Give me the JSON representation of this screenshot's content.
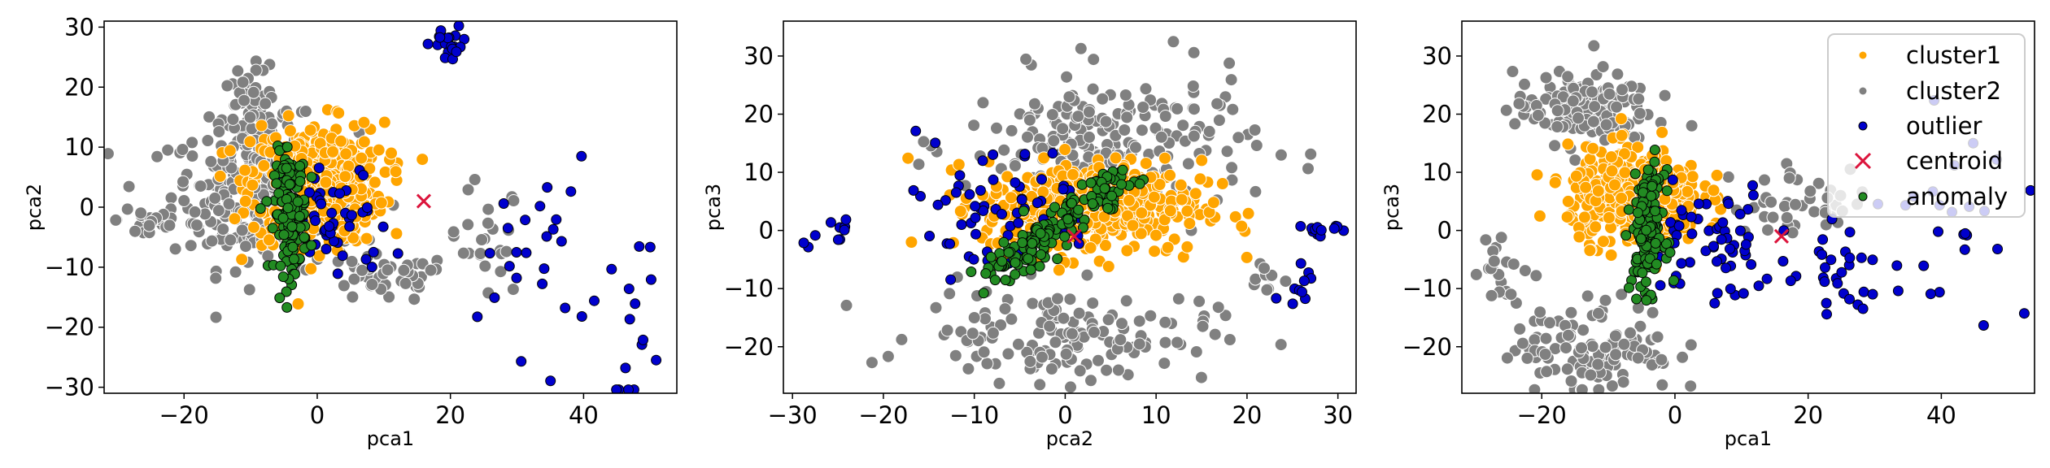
{
  "colors": {
    "cluster1": "#ffa500",
    "cluster2": "#808080",
    "outlier": "#0000cd",
    "centroid": "#dc143c",
    "anomaly": "#228b22"
  },
  "legend": {
    "placement": "top-right of third panel",
    "entries": [
      "cluster1",
      "cluster2",
      "outlier",
      "centroid",
      "anomaly"
    ]
  },
  "chart_data": [
    {
      "type": "scatter",
      "xlabel": "pca1",
      "ylabel": "pca2",
      "xlim": [
        -32,
        54
      ],
      "ylim": [
        -31,
        31
      ],
      "xticks": [
        -20,
        0,
        20,
        40
      ],
      "yticks": [
        -30,
        -20,
        -10,
        0,
        10,
        20,
        30
      ],
      "xtick_labels": [
        "−20",
        "0",
        "20",
        "40"
      ],
      "ytick_labels": [
        "−30",
        "−20",
        "−10",
        "0",
        "10",
        "20",
        "30"
      ],
      "clusters": {
        "cluster2": [
          {
            "cx": -8,
            "cy": 2,
            "sx": 7,
            "sy": 6,
            "n": 280
          },
          {
            "cx": -10,
            "cy": 15,
            "sx": 3,
            "sy": 4,
            "n": 60
          },
          {
            "cx": -25,
            "cy": -2,
            "sx": 2.5,
            "sy": 2,
            "n": 25
          },
          {
            "cx": 10,
            "cy": -12,
            "sx": 5,
            "sy": 2,
            "n": 40
          },
          {
            "cx": 25,
            "cy": -6,
            "sx": 3,
            "sy": 5,
            "n": 25
          }
        ],
        "cluster1": [
          {
            "cx": 0,
            "cy": 4,
            "sx": 5,
            "sy": 5,
            "n": 420
          }
        ],
        "outlier": [
          {
            "cx": 20,
            "cy": 27,
            "sx": 1.5,
            "sy": 1.5,
            "n": 20
          },
          {
            "cx": 3,
            "cy": -3,
            "sx": 4,
            "sy": 5,
            "n": 45
          },
          {
            "cx": 33,
            "cy": -8,
            "sx": 4,
            "sy": 8,
            "n": 25
          },
          {
            "cx": 48,
            "cy": -20,
            "sx": 2,
            "sy": 8,
            "n": 15
          }
        ],
        "anomaly": [
          {
            "cx": -4,
            "cy": -1,
            "sx": 1.2,
            "sy": 5,
            "n": 160
          }
        ]
      },
      "centroid": {
        "x": 16,
        "y": 1
      }
    },
    {
      "type": "scatter",
      "xlabel": "pca2",
      "ylabel": "pca3",
      "xlim": [
        -31,
        32
      ],
      "ylim": [
        -28,
        36
      ],
      "xticks": [
        -30,
        -20,
        -10,
        0,
        10,
        20,
        30
      ],
      "yticks": [
        -20,
        -10,
        0,
        10,
        20,
        30
      ],
      "xtick_labels": [
        "−30",
        "−20",
        "−10",
        "0",
        "10",
        "20",
        "30"
      ],
      "ytick_labels": [
        "−20",
        "−10",
        "0",
        "10",
        "20",
        "30"
      ],
      "clusters": {
        "cluster2": [
          {
            "cx": 5,
            "cy": 15,
            "sx": 8,
            "sy": 6,
            "n": 200
          },
          {
            "cx": 0,
            "cy": -18,
            "sx": 8,
            "sy": 4,
            "n": 140
          },
          {
            "cx": 22,
            "cy": -8,
            "sx": 1.5,
            "sy": 1.5,
            "n": 10
          }
        ],
        "cluster1": [
          {
            "cx": 3,
            "cy": 4,
            "sx": 6,
            "sy": 4,
            "n": 420
          }
        ],
        "outlier": [
          {
            "cx": -8,
            "cy": 4,
            "sx": 6,
            "sy": 6,
            "n": 60
          },
          {
            "cx": -26,
            "cy": 0,
            "sx": 1.5,
            "sy": 1.2,
            "n": 10
          },
          {
            "cx": 28,
            "cy": 0,
            "sx": 1,
            "sy": 1,
            "n": 12
          },
          {
            "cx": 26,
            "cy": -9,
            "sx": 1,
            "sy": 2,
            "n": 10
          }
        ],
        "anomaly_line": {
          "x0": -8,
          "y0": -8,
          "x1": 6,
          "y1": 9,
          "spread": 1.2,
          "n": 160
        }
      },
      "centroid": {
        "x": 1,
        "y": -1
      }
    },
    {
      "type": "scatter",
      "xlabel": "pca1",
      "ylabel": "pca3",
      "xlim": [
        -32,
        54
      ],
      "ylim": [
        -28,
        36
      ],
      "xticks": [
        -20,
        0,
        20,
        40
      ],
      "yticks": [
        -20,
        -10,
        0,
        10,
        20,
        30
      ],
      "xtick_labels": [
        "−20",
        "0",
        "20",
        "40"
      ],
      "ytick_labels": [
        "−20",
        "−10",
        "0",
        "10",
        "20",
        "30"
      ],
      "clusters": {
        "cluster2": [
          {
            "cx": -14,
            "cy": 21,
            "sx": 5,
            "sy": 3,
            "n": 160
          },
          {
            "cx": -12,
            "cy": -20,
            "sx": 6,
            "sy": 4,
            "n": 120
          },
          {
            "cx": -26,
            "cy": -7,
            "sx": 2,
            "sy": 3,
            "n": 20
          },
          {
            "cx": 20,
            "cy": 5,
            "sx": 6,
            "sy": 3,
            "n": 40
          }
        ],
        "cluster1": [
          {
            "cx": -6,
            "cy": 6,
            "sx": 5,
            "sy": 4,
            "n": 400
          }
        ],
        "outlier": [
          {
            "cx": 5,
            "cy": -2,
            "sx": 5,
            "sy": 5,
            "n": 60
          },
          {
            "cx": 24,
            "cy": -4,
            "sx": 5,
            "sy": 6,
            "n": 30
          },
          {
            "cx": 42,
            "cy": 2,
            "sx": 6,
            "sy": 8,
            "n": 25
          }
        ],
        "anomaly": [
          {
            "cx": -4,
            "cy": 0,
            "sx": 1.2,
            "sy": 5,
            "n": 160
          }
        ]
      },
      "centroid": {
        "x": 16,
        "y": -1
      }
    }
  ]
}
